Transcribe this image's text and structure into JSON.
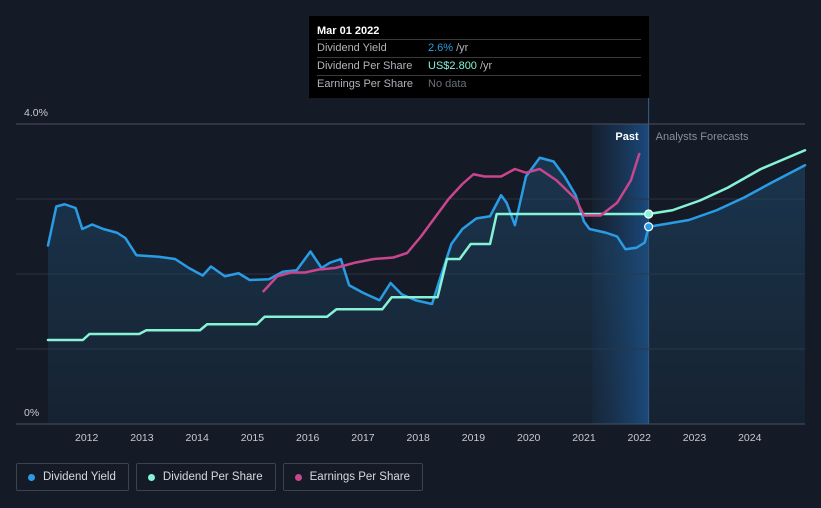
{
  "tooltip": {
    "date": "Mar 01 2022",
    "rows": [
      {
        "label": "Dividend Yield",
        "value": "2.6%",
        "unit": "/yr"
      },
      {
        "label": "Dividend Per Share",
        "value": "US$2.800",
        "unit": "/yr"
      },
      {
        "label": "Earnings Per Share",
        "value": "No data"
      }
    ]
  },
  "legend": [
    {
      "label": "Dividend Yield",
      "color": "#2a9ce5"
    },
    {
      "label": "Dividend Per Share",
      "color": "#86f2d6"
    },
    {
      "label": "Earnings Per Share",
      "color": "#c9458e"
    }
  ],
  "chart_data": {
    "type": "line",
    "y_tick_labels": [
      "4.0%",
      "0%"
    ],
    "ylim": [
      0,
      4.0
    ],
    "xlim": [
      2011.3,
      2025.0
    ],
    "x_tick_labels": [
      "2012",
      "2013",
      "2014",
      "2015",
      "2016",
      "2017",
      "2018",
      "2019",
      "2020",
      "2021",
      "2022",
      "2023",
      "2024"
    ],
    "region_labels": {
      "past": "Past",
      "forecast": "Analysts Forecasts"
    },
    "past_band": [
      2021.15,
      2022.17
    ],
    "current_x": 2022.17,
    "series": [
      {
        "name": "Dividend Yield",
        "color": "#2a9ce5",
        "fill": true,
        "points": [
          [
            2011.3,
            2.38
          ],
          [
            2011.45,
            2.9
          ],
          [
            2011.6,
            2.93
          ],
          [
            2011.8,
            2.88
          ],
          [
            2011.92,
            2.6
          ],
          [
            2012.1,
            2.66
          ],
          [
            2012.3,
            2.6
          ],
          [
            2012.55,
            2.55
          ],
          [
            2012.7,
            2.48
          ],
          [
            2012.9,
            2.25
          ],
          [
            2013.3,
            2.23
          ],
          [
            2013.6,
            2.2
          ],
          [
            2013.85,
            2.08
          ],
          [
            2014.1,
            1.98
          ],
          [
            2014.25,
            2.1
          ],
          [
            2014.5,
            1.97
          ],
          [
            2014.75,
            2.01
          ],
          [
            2014.95,
            1.92
          ],
          [
            2015.3,
            1.93
          ],
          [
            2015.55,
            2.03
          ],
          [
            2015.8,
            2.05
          ],
          [
            2016.05,
            2.3
          ],
          [
            2016.25,
            2.08
          ],
          [
            2016.4,
            2.15
          ],
          [
            2016.6,
            2.2
          ],
          [
            2016.75,
            1.85
          ],
          [
            2017.0,
            1.75
          ],
          [
            2017.3,
            1.65
          ],
          [
            2017.5,
            1.88
          ],
          [
            2017.7,
            1.73
          ],
          [
            2017.95,
            1.65
          ],
          [
            2018.25,
            1.6
          ],
          [
            2018.4,
            1.95
          ],
          [
            2018.6,
            2.4
          ],
          [
            2018.8,
            2.6
          ],
          [
            2019.05,
            2.74
          ],
          [
            2019.3,
            2.77
          ],
          [
            2019.5,
            3.05
          ],
          [
            2019.6,
            2.95
          ],
          [
            2019.75,
            2.65
          ],
          [
            2019.95,
            3.3
          ],
          [
            2020.2,
            3.55
          ],
          [
            2020.45,
            3.5
          ],
          [
            2020.65,
            3.3
          ],
          [
            2020.85,
            3.05
          ],
          [
            2021.0,
            2.7
          ],
          [
            2021.1,
            2.6
          ],
          [
            2021.4,
            2.55
          ],
          [
            2021.6,
            2.5
          ],
          [
            2021.75,
            2.33
          ],
          [
            2021.95,
            2.35
          ],
          [
            2022.1,
            2.42
          ],
          [
            2022.17,
            2.63
          ],
          [
            2022.5,
            2.67
          ],
          [
            2022.9,
            2.72
          ],
          [
            2023.4,
            2.85
          ],
          [
            2023.9,
            3.02
          ],
          [
            2024.4,
            3.22
          ],
          [
            2025.0,
            3.45
          ]
        ]
      },
      {
        "name": "Dividend Per Share",
        "color": "#86f2d6",
        "fill": false,
        "points": [
          [
            2011.3,
            1.12
          ],
          [
            2011.93,
            1.12
          ],
          [
            2012.05,
            1.2
          ],
          [
            2012.95,
            1.2
          ],
          [
            2013.08,
            1.25
          ],
          [
            2014.05,
            1.25
          ],
          [
            2014.18,
            1.33
          ],
          [
            2015.08,
            1.33
          ],
          [
            2015.22,
            1.43
          ],
          [
            2016.35,
            1.43
          ],
          [
            2016.52,
            1.53
          ],
          [
            2017.35,
            1.53
          ],
          [
            2017.52,
            1.69
          ],
          [
            2018.35,
            1.69
          ],
          [
            2018.52,
            2.2
          ],
          [
            2018.75,
            2.2
          ],
          [
            2018.95,
            2.4
          ],
          [
            2019.3,
            2.4
          ],
          [
            2019.42,
            2.8
          ],
          [
            2022.17,
            2.8
          ],
          [
            2022.6,
            2.85
          ],
          [
            2023.1,
            2.98
          ],
          [
            2023.6,
            3.15
          ],
          [
            2024.2,
            3.4
          ],
          [
            2025.0,
            3.65
          ]
        ]
      },
      {
        "name": "Earnings Per Share",
        "color": "#c9458e",
        "fill": false,
        "points": [
          [
            2015.2,
            1.77
          ],
          [
            2015.45,
            1.97
          ],
          [
            2015.7,
            2.02
          ],
          [
            2015.95,
            2.02
          ],
          [
            2016.2,
            2.06
          ],
          [
            2016.5,
            2.08
          ],
          [
            2016.85,
            2.15
          ],
          [
            2017.2,
            2.2
          ],
          [
            2017.55,
            2.22
          ],
          [
            2017.8,
            2.28
          ],
          [
            2018.05,
            2.5
          ],
          [
            2018.3,
            2.75
          ],
          [
            2018.55,
            3.0
          ],
          [
            2018.8,
            3.2
          ],
          [
            2019.0,
            3.33
          ],
          [
            2019.2,
            3.3
          ],
          [
            2019.5,
            3.3
          ],
          [
            2019.75,
            3.4
          ],
          [
            2019.95,
            3.35
          ],
          [
            2020.2,
            3.4
          ],
          [
            2020.5,
            3.25
          ],
          [
            2020.85,
            3.0
          ],
          [
            2021.0,
            2.78
          ],
          [
            2021.3,
            2.78
          ],
          [
            2021.6,
            2.95
          ],
          [
            2021.85,
            3.25
          ],
          [
            2022.0,
            3.6
          ]
        ]
      }
    ]
  }
}
